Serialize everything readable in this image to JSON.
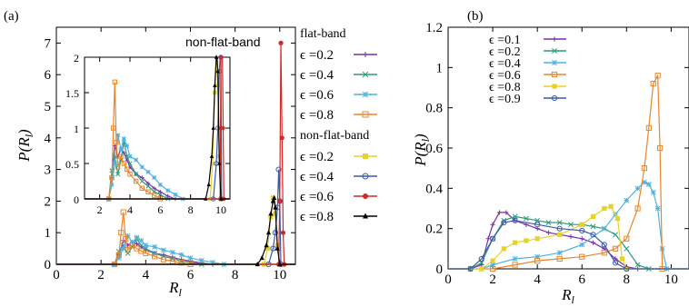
{
  "chart_data": [
    {
      "panel_label": "(a)",
      "type": "line",
      "xlabel": "R_l",
      "ylabel": "P(R_l)",
      "xlim": [
        0,
        10.7
      ],
      "ylim": [
        0,
        7.5
      ],
      "xticks": [
        "0",
        "2",
        "4",
        "6",
        "8",
        "10"
      ],
      "yticks": [
        "0",
        "1",
        "2",
        "3",
        "4",
        "5",
        "6",
        "7"
      ],
      "annotations": [
        "non-flat-band"
      ],
      "legend_groups": [
        {
          "title": "flat-band",
          "series": [
            {
              "name": "ϵ =0.2",
              "color": "#7b2fa6",
              "marker": "plus",
              "x": [
                2.6,
                2.8,
                3.0,
                3.2,
                3.4,
                3.6,
                3.8,
                4.0,
                4.4,
                4.8,
                5.2,
                5.6,
                6.0,
                6.5,
                7.0
              ],
              "y": [
                0,
                0.3,
                0.75,
                0.6,
                0.7,
                0.65,
                0.55,
                0.45,
                0.35,
                0.3,
                0.22,
                0.15,
                0.1,
                0.04,
                0
              ]
            },
            {
              "name": "ϵ =0.4",
              "color": "#2e9a7d",
              "marker": "cross",
              "x": [
                2.6,
                2.8,
                3.0,
                3.2,
                3.4,
                3.6,
                3.8,
                4.0,
                4.4,
                4.8,
                5.2,
                5.6,
                6.0,
                6.5
              ],
              "y": [
                0,
                0.4,
                0.6,
                0.35,
                0.55,
                0.8,
                0.6,
                0.5,
                0.35,
                0.25,
                0.18,
                0.1,
                0.06,
                0
              ]
            },
            {
              "name": "ϵ =0.6",
              "color": "#4fb3e0",
              "marker": "star",
              "x": [
                2.6,
                2.8,
                3.0,
                3.2,
                3.4,
                3.6,
                3.8,
                4.0,
                4.4,
                4.8,
                5.2,
                5.6,
                6.0,
                6.5,
                7.0,
                7.5
              ],
              "y": [
                0,
                0.2,
                0.5,
                0.9,
                0.7,
                0.85,
                0.75,
                0.6,
                0.55,
                0.45,
                0.38,
                0.3,
                0.2,
                0.12,
                0.06,
                0
              ]
            },
            {
              "name": "ϵ =0.8",
              "color": "#e8862a",
              "marker": "square",
              "x": [
                2.6,
                2.8,
                2.9,
                3.0,
                3.1,
                3.2,
                3.4,
                3.6,
                3.8,
                4.0,
                4.4,
                4.8,
                5.2,
                5.6,
                6.0
              ],
              "y": [
                0,
                0.3,
                1.0,
                1.65,
                0.8,
                0.45,
                0.6,
                0.5,
                0.42,
                0.35,
                0.25,
                0.15,
                0.1,
                0.05,
                0
              ]
            }
          ]
        },
        {
          "title": "non-flat-band",
          "series": [
            {
              "name": "ϵ =0.2",
              "color": "#e6d22c",
              "marker": "square-filled",
              "x": [
                9.3,
                9.45,
                9.6,
                9.7,
                9.8,
                9.9,
                10.0
              ],
              "y": [
                0,
                0.5,
                1.5,
                2.1,
                1.6,
                0.6,
                0
              ]
            },
            {
              "name": "ϵ =0.4",
              "color": "#3a5ba7",
              "marker": "circle",
              "x": [
                9.5,
                9.7,
                9.8,
                9.9,
                9.95,
                10.0,
                10.05
              ],
              "y": [
                0,
                0.5,
                1.0,
                1.8,
                3.0,
                2.0,
                0
              ]
            },
            {
              "name": "ϵ =0.6",
              "color": "#d02a2a",
              "marker": "circle-filled",
              "x": [
                9.95,
                10.0,
                10.05,
                10.1,
                10.15,
                10.2
              ],
              "y": [
                0,
                2.0,
                7.0,
                4.0,
                1.0,
                0
              ]
            },
            {
              "name": "ϵ =0.8",
              "color": "#000000",
              "marker": "triangle",
              "x": [
                9.0,
                9.2,
                9.4,
                9.5,
                9.6,
                9.7,
                9.75,
                9.8,
                9.9,
                10.0
              ],
              "y": [
                0,
                0.2,
                0.6,
                1.0,
                1.6,
                2.0,
                2.1,
                1.8,
                0.5,
                0
              ]
            }
          ]
        }
      ],
      "inset": {
        "title": "flat-band",
        "annotations": [
          "flat-band"
        ],
        "xlim": [
          1,
          10.6
        ],
        "ylim": [
          0,
          2
        ],
        "xticks": [
          "2",
          "4",
          "6",
          "8",
          "10"
        ],
        "yticks": [
          "0",
          "0.5",
          "1",
          "1.5",
          "2"
        ]
      }
    },
    {
      "panel_label": "(b)",
      "type": "line",
      "xlabel": "R_l",
      "ylabel": "P(R_l)",
      "xlim": [
        0,
        10.8
      ],
      "ylim": [
        0,
        1.2
      ],
      "xticks": [
        "0",
        "2",
        "4",
        "6",
        "8",
        "10"
      ],
      "yticks": [
        "0",
        "0.2",
        "0.4",
        "0.6",
        "0.8",
        "1",
        "1.2"
      ],
      "series": [
        {
          "name": "ϵ =0.1",
          "color": "#7b2fa6",
          "marker": "plus",
          "x": [
            1.0,
            1.5,
            1.8,
            2.0,
            2.3,
            2.6,
            3.0,
            3.5,
            4.0,
            4.5,
            5.0,
            5.5,
            6.0,
            6.5,
            7.0,
            7.5,
            8.0,
            8.5
          ],
          "y": [
            0,
            0.02,
            0.15,
            0.22,
            0.28,
            0.28,
            0.24,
            0.22,
            0.2,
            0.18,
            0.17,
            0.16,
            0.15,
            0.13,
            0.1,
            0.05,
            0.01,
            0
          ]
        },
        {
          "name": "ϵ =0.2",
          "color": "#2e9a7d",
          "marker": "cross",
          "x": [
            1.0,
            1.5,
            2.0,
            2.5,
            3.0,
            3.5,
            4.0,
            4.5,
            5.0,
            5.5,
            6.0,
            6.5,
            7.0,
            7.5,
            8.0,
            8.5,
            9.0
          ],
          "y": [
            0,
            0.03,
            0.15,
            0.24,
            0.26,
            0.25,
            0.24,
            0.23,
            0.23,
            0.22,
            0.22,
            0.21,
            0.2,
            0.17,
            0.1,
            0.02,
            0
          ]
        },
        {
          "name": "ϵ =0.4",
          "color": "#4fb3e0",
          "marker": "star",
          "x": [
            1.5,
            2.0,
            3.0,
            4.0,
            5.0,
            6.0,
            7.0,
            7.5,
            8.0,
            8.5,
            8.8,
            9.0,
            9.2,
            9.4,
            9.6,
            9.8
          ],
          "y": [
            0,
            0.02,
            0.05,
            0.06,
            0.08,
            0.12,
            0.2,
            0.27,
            0.34,
            0.4,
            0.43,
            0.42,
            0.38,
            0.3,
            0.1,
            0
          ]
        },
        {
          "name": "ϵ =0.6",
          "color": "#e8862a",
          "marker": "square",
          "x": [
            2.0,
            3.0,
            4.0,
            5.0,
            6.0,
            7.0,
            7.5,
            8.0,
            8.5,
            8.8,
            9.0,
            9.2,
            9.4,
            9.5,
            9.6
          ],
          "y": [
            0,
            0.02,
            0.04,
            0.05,
            0.06,
            0.08,
            0.1,
            0.15,
            0.3,
            0.5,
            0.7,
            0.92,
            0.96,
            0.6,
            0
          ]
        },
        {
          "name": "ϵ =0.8",
          "color": "#e6d22c",
          "marker": "square-filled",
          "x": [
            1.5,
            2.0,
            2.5,
            3.0,
            3.5,
            4.0,
            5.0,
            6.0,
            6.5,
            7.0,
            7.3,
            7.6,
            7.8,
            8.0
          ],
          "y": [
            0,
            0.04,
            0.1,
            0.13,
            0.14,
            0.15,
            0.17,
            0.22,
            0.26,
            0.3,
            0.31,
            0.25,
            0.05,
            0
          ]
        },
        {
          "name": "ϵ =0.9",
          "color": "#3a5ba7",
          "marker": "circle",
          "x": [
            1.0,
            1.5,
            2.0,
            2.5,
            3.0,
            4.0,
            5.0,
            6.0,
            6.5,
            7.0,
            7.5,
            8.0
          ],
          "y": [
            0,
            0.05,
            0.15,
            0.23,
            0.24,
            0.22,
            0.2,
            0.19,
            0.17,
            0.12,
            0.03,
            0
          ]
        }
      ]
    }
  ]
}
